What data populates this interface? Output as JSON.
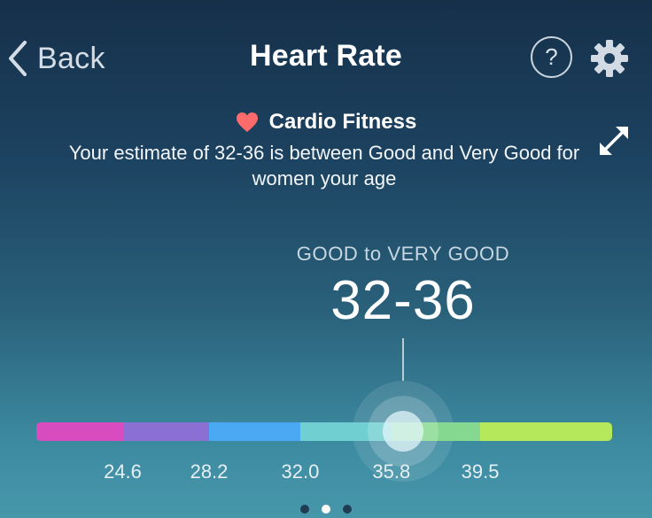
{
  "nav": {
    "back_label": "Back",
    "title": "Heart Rate",
    "help_label": "?"
  },
  "section": {
    "name": "Cardio Fitness",
    "description": "Your estimate of 32-36 is between Good and Very Good for women your age"
  },
  "result": {
    "rating": "GOOD to VERY GOOD",
    "value": "32-36"
  },
  "scale": {
    "min": 21.0,
    "max": 45.0,
    "marker_value": 34.0,
    "segments": [
      {
        "from": 21.0,
        "to": 24.6,
        "color": "#d84cbf"
      },
      {
        "from": 24.6,
        "to": 28.2,
        "color": "#8c6fd3"
      },
      {
        "from": 28.2,
        "to": 32.0,
        "color": "#4aa9f2"
      },
      {
        "from": 32.0,
        "to": 35.8,
        "color": "#6fcfd1"
      },
      {
        "from": 35.8,
        "to": 39.5,
        "color": "#85d88f"
      },
      {
        "from": 39.5,
        "to": 45.0,
        "color": "#b5e85a"
      }
    ],
    "ticks": [
      "24.6",
      "28.2",
      "32.0",
      "35.8",
      "39.5"
    ]
  },
  "pager": {
    "count": 3,
    "active": 1
  },
  "colors": {
    "heart": "#ff6b6b"
  }
}
